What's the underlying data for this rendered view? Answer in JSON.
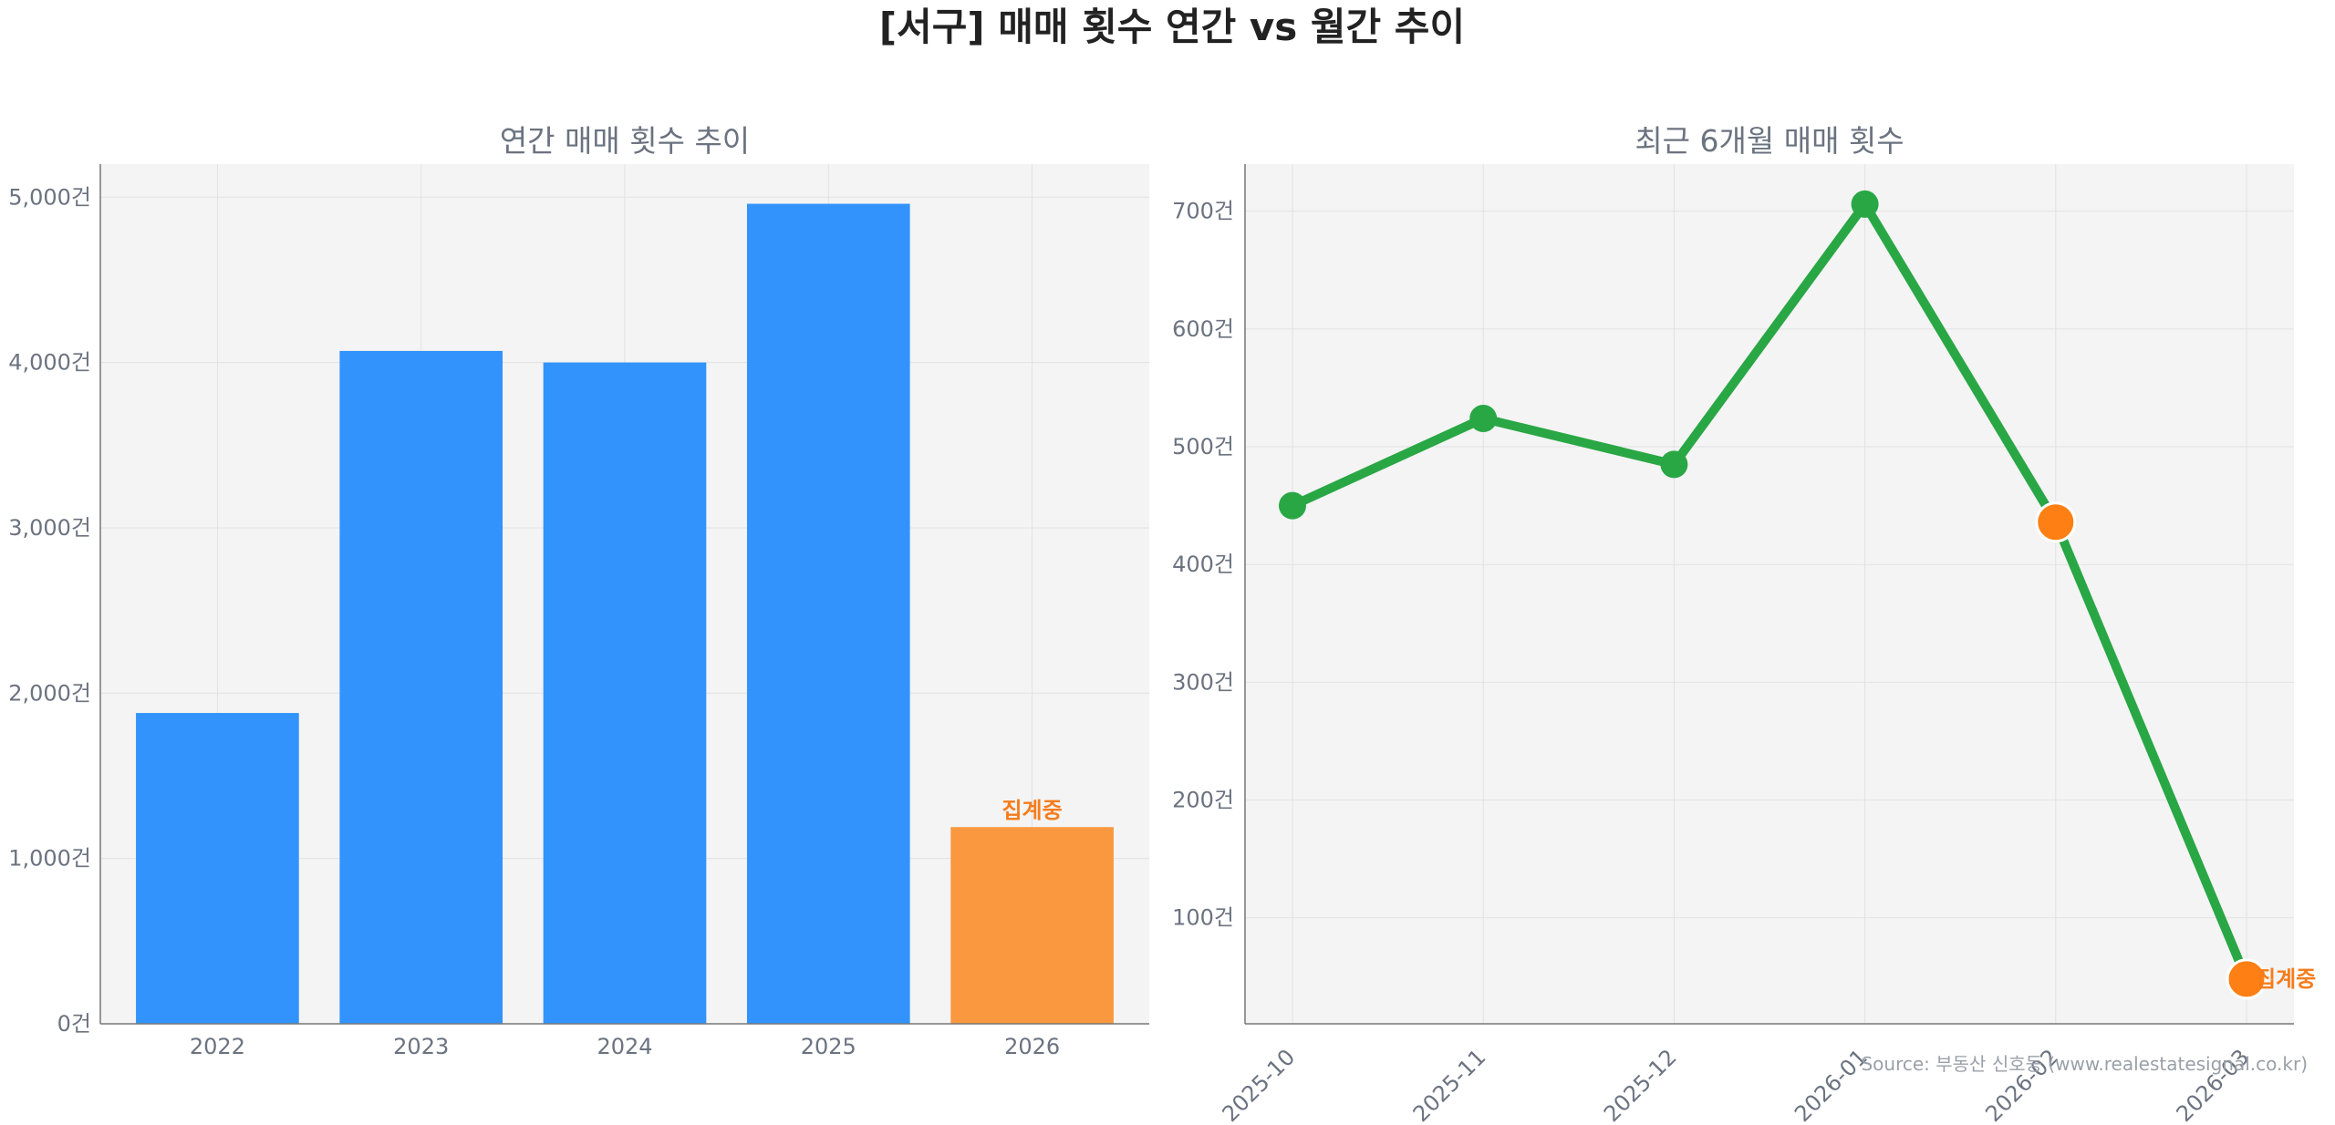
{
  "title": "[서구] 매매 횟수 연간 vs 월간 추이",
  "source": "Source: 부동산 신호등 (www.realestatesignal.co.kr)",
  "colors": {
    "bar": "#3193fb",
    "bar_highlight": "#f9983f",
    "line": "#29a745",
    "marker_highlight": "#fe7f13",
    "note": "#f67c1b",
    "panel_bg": "#f4f4f4"
  },
  "chart_data": [
    {
      "type": "bar",
      "title": "연간 매매 횟수 추이",
      "categories": [
        "2022",
        "2023",
        "2024",
        "2025",
        "2026"
      ],
      "values": [
        1880,
        4070,
        4000,
        4960,
        1190
      ],
      "highlight_index": 4,
      "highlight_label": "집계중",
      "ylim": [
        0,
        5200
      ],
      "yticks": [
        0,
        1000,
        2000,
        3000,
        4000,
        5000
      ],
      "ytick_labels": [
        "0건",
        "1,000건",
        "2,000건",
        "3,000건",
        "4,000건",
        "5,000건"
      ],
      "grid": true
    },
    {
      "type": "line",
      "title": "최근 6개월 매매 횟수",
      "x": [
        "2025-10",
        "2025-11",
        "2025-12",
        "2026-01",
        "2026-02",
        "2026-03"
      ],
      "values": [
        450,
        524,
        485,
        706,
        436,
        48
      ],
      "highlight_indices": [
        4,
        5
      ],
      "highlight_label": "집계중",
      "ylim": [
        10,
        740
      ],
      "yticks": [
        100,
        200,
        300,
        400,
        500,
        600,
        700
      ],
      "ytick_labels": [
        "100건",
        "200건",
        "300건",
        "400건",
        "500건",
        "600건",
        "700건"
      ],
      "grid": true
    }
  ]
}
